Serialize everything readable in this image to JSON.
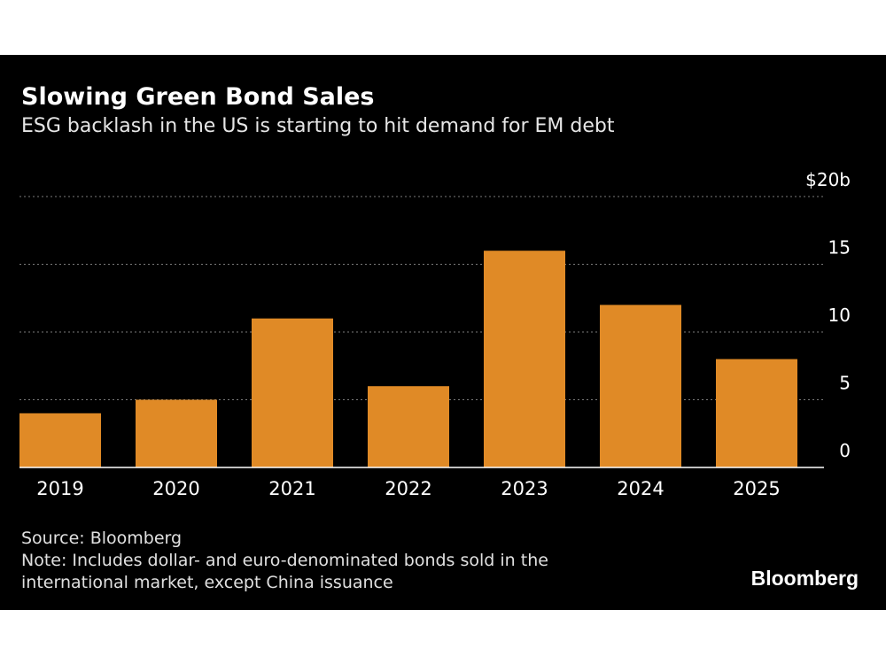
{
  "chart_data": {
    "type": "bar",
    "title": "Slowing Green Bond Sales",
    "subtitle": "ESG backlash in the US is starting to hit demand for EM debt",
    "categories": [
      "2019",
      "2020",
      "2021",
      "2022",
      "2023",
      "2024",
      "2025"
    ],
    "values": [
      4.0,
      5.0,
      11.0,
      6.0,
      16.0,
      12.0,
      8.0
    ],
    "unit": "$ billions",
    "ylim": [
      0,
      20
    ],
    "yticks": [
      0,
      5,
      10,
      15,
      20
    ],
    "ytick_labels": [
      "0",
      "5",
      "10",
      "15",
      "$20b"
    ],
    "ytick_side": "right",
    "grid": true,
    "bar_color": "#e08a26",
    "background": "#000000"
  },
  "footer": {
    "source": "Source: Bloomberg",
    "note_line1": "Note: Includes dollar- and euro-denominated bonds sold in the",
    "note_line2": "international market, except China issuance"
  },
  "brand": {
    "logo_text": "Bloomberg"
  }
}
